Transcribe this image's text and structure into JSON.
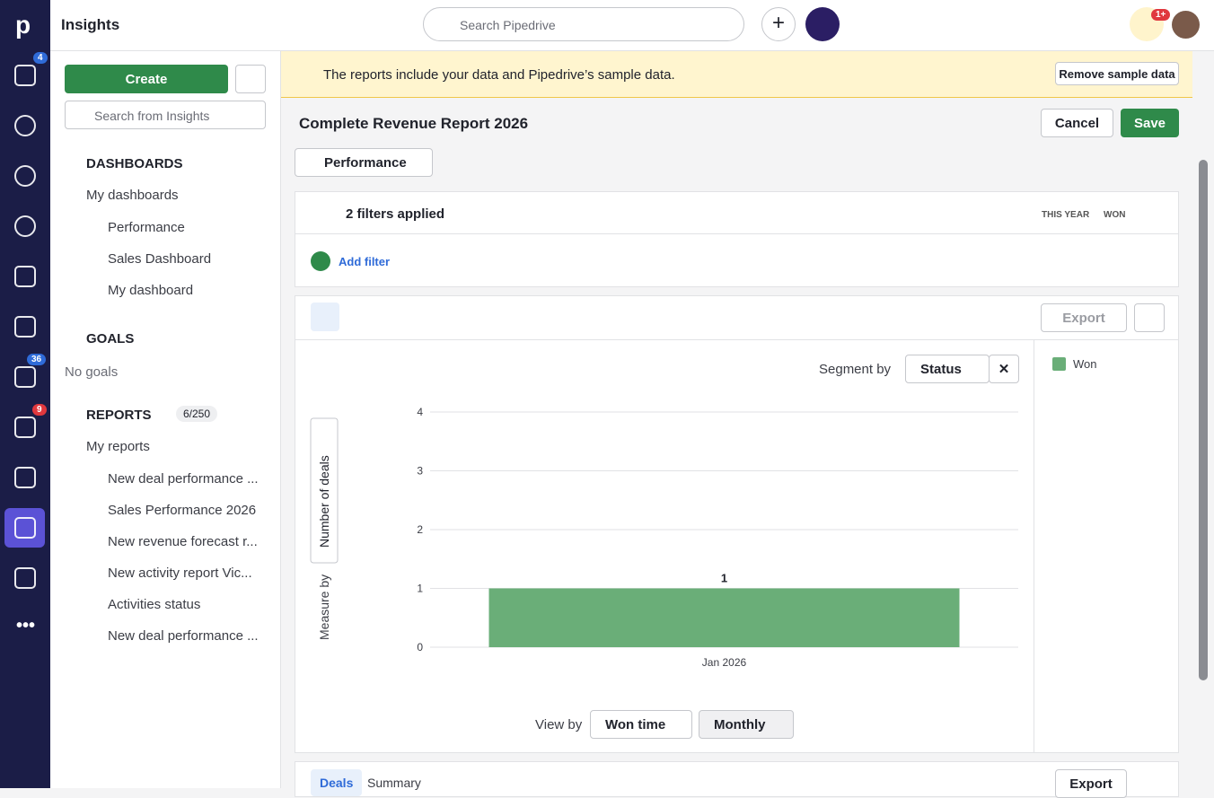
{
  "header": {
    "title": "Insights",
    "search_placeholder": "Search Pipedrive",
    "notifications": "1+"
  },
  "nav": {
    "badges": [
      "4",
      "36",
      "9"
    ]
  },
  "sidebar": {
    "create": "Create",
    "search_placeholder": "Search from Insights",
    "dashboards": {
      "title": "DASHBOARDS",
      "group": "My dashboards",
      "items": [
        "Performance",
        "Sales Dashboard",
        "My dashboard"
      ]
    },
    "goals": {
      "title": "GOALS",
      "empty": "No goals"
    },
    "reports": {
      "title": "REPORTS",
      "count": "6/250",
      "group": "My reports",
      "items": [
        "New deal performance ...",
        "Sales Performance 2026",
        "New revenue forecast r...",
        "New activity report Vic...",
        "Activities status",
        "New deal performance ..."
      ]
    }
  },
  "banner": {
    "text": "The reports include your data and Pipedrive’s sample data.",
    "button": "Remove sample data"
  },
  "report": {
    "title": "Complete Revenue Report 2026",
    "cancel": "Cancel",
    "save": "Save",
    "type": "Performance",
    "filters": {
      "summary": "2 filters applied",
      "period": "THIS YEAR",
      "status": "WON",
      "add": "Add filter"
    },
    "export": "Export",
    "segment_label": "Segment by",
    "segment": "Status",
    "view_label": "View by",
    "view_field": "Won time",
    "interval": "Monthly",
    "tabs": [
      "Deals",
      "Summary"
    ],
    "table_export": "Export"
  },
  "chart_data": {
    "type": "bar",
    "categories": [
      "Jan 2026"
    ],
    "series": [
      {
        "name": "Won",
        "color": "#6aae78",
        "values": [
          1
        ]
      }
    ],
    "ylim": [
      0,
      4
    ],
    "yticks": [
      0,
      1,
      2,
      3,
      4
    ],
    "y_label": "Number of deals",
    "measure_label": "Measure by",
    "grid": true,
    "legend": "right"
  }
}
